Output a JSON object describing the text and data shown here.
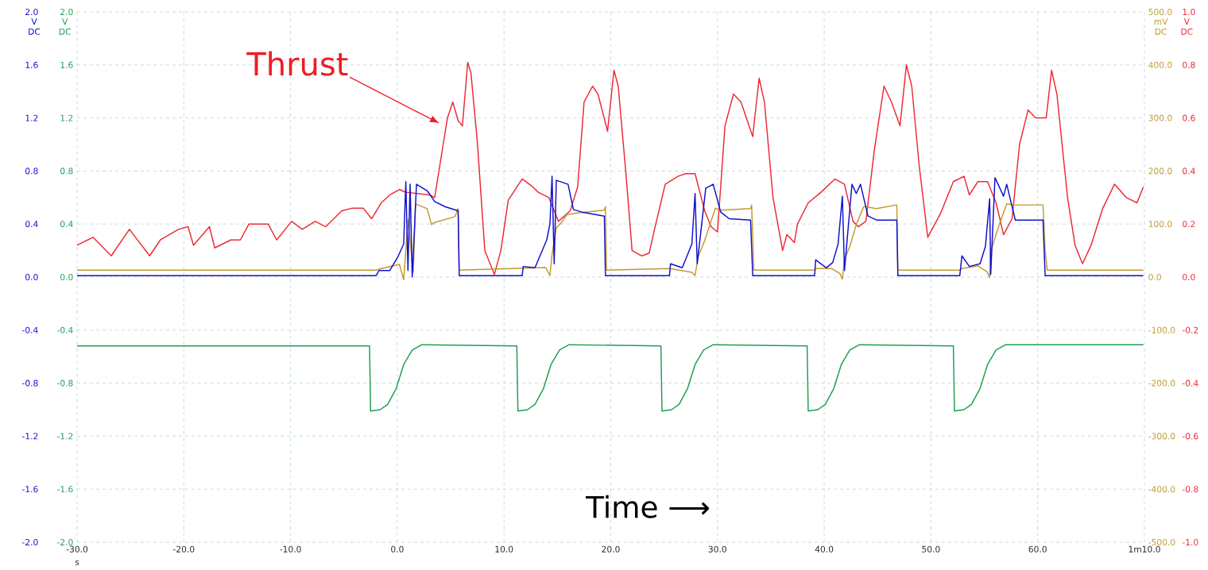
{
  "chart_data": {
    "type": "line",
    "xlabel": "s",
    "ylabel": "V DC",
    "y2label": "V DC",
    "y3label": "mV DC",
    "xlim": [
      -30,
      70
    ],
    "xticks": [
      {
        "value": -30,
        "label": "-30.0"
      },
      {
        "value": -20,
        "label": "-20.0"
      },
      {
        "value": -10,
        "label": "-10.0"
      },
      {
        "value": 0,
        "label": "0.0"
      },
      {
        "value": 10,
        "label": "10.0"
      },
      {
        "value": 20,
        "label": "20.0"
      },
      {
        "value": 30,
        "label": "30.0"
      },
      {
        "value": 40,
        "label": "40.0"
      },
      {
        "value": 50,
        "label": "50.0"
      },
      {
        "value": 60,
        "label": "60.0"
      },
      {
        "value": 70,
        "label": "1m10.0"
      }
    ],
    "ylim": [
      -2,
      2
    ],
    "yticks": [
      {
        "value": -2,
        "label": "-2.0"
      },
      {
        "value": -1.6,
        "label": "-1.6"
      },
      {
        "value": -1.2,
        "label": "-1.2"
      },
      {
        "value": -0.8,
        "label": "-0.8"
      },
      {
        "value": -0.4,
        "label": "-0.4"
      },
      {
        "value": 0,
        "label": "0.0"
      },
      {
        "value": 0.4,
        "label": "0.4"
      },
      {
        "value": 0.8,
        "label": "0.8"
      },
      {
        "value": 1.2,
        "label": "1.2"
      },
      {
        "value": 1.6,
        "label": "1.6"
      },
      {
        "value": 2,
        "label": "2.0"
      }
    ],
    "y3lim": [
      -500,
      500
    ],
    "y3ticks": [
      {
        "value": -500,
        "label": "-500.0"
      },
      {
        "value": -400,
        "label": "-400.0"
      },
      {
        "value": -300,
        "label": "-300.0"
      },
      {
        "value": -200,
        "label": "-200.0"
      },
      {
        "value": -100,
        "label": "-100.0"
      },
      {
        "value": 0,
        "label": "0.0"
      },
      {
        "value": 100,
        "label": "100.0"
      },
      {
        "value": 200,
        "label": "200.0"
      },
      {
        "value": 300,
        "label": "300.0"
      },
      {
        "value": 400,
        "label": "400.0"
      },
      {
        "value": 500,
        "label": "500.0"
      }
    ],
    "y2lim": [
      -1,
      1
    ],
    "y2ticks": [
      {
        "value": -1,
        "label": "-1.0"
      },
      {
        "value": -0.8,
        "label": "-0.8"
      },
      {
        "value": -0.6,
        "label": "-0.6"
      },
      {
        "value": -0.4,
        "label": "-0.4"
      },
      {
        "value": -0.2,
        "label": "-0.2"
      },
      {
        "value": 0,
        "label": "0.0"
      },
      {
        "value": 0.2,
        "label": "0.2"
      },
      {
        "value": 0.4,
        "label": "0.4"
      },
      {
        "value": 0.6,
        "label": "0.6"
      },
      {
        "value": 0.8,
        "label": "0.8"
      },
      {
        "value": 1,
        "label": "1.0"
      }
    ],
    "grid": true,
    "annotations": [
      "Thrust",
      "Time ⟶"
    ],
    "series": [
      {
        "color": "#1e9e50",
        "axis": "y",
        "x": [
          -30,
          -2.6,
          -2.5,
          -1.6,
          -0.9,
          -0.1,
          0.6,
          1.4,
          2.3,
          11.2,
          11.3,
          12.2,
          12.9,
          13.7,
          14.4,
          15.2,
          16.1,
          24.7,
          24.8,
          25.7,
          26.4,
          27.2,
          27.9,
          28.7,
          29.6,
          38.4,
          38.5,
          39.4,
          40.1,
          40.9,
          41.6,
          42.4,
          43.3,
          52.1,
          52.2,
          53.1,
          53.8,
          54.6,
          55.3,
          56.1,
          57.0,
          69.9
        ],
        "values": [
          -0.52,
          -0.52,
          -1.01,
          -1.0,
          -0.96,
          -0.84,
          -0.66,
          -0.55,
          -0.51,
          -0.52,
          -1.01,
          -1.0,
          -0.96,
          -0.84,
          -0.66,
          -0.55,
          -0.51,
          -0.52,
          -1.01,
          -1.0,
          -0.96,
          -0.84,
          -0.66,
          -0.55,
          -0.51,
          -0.52,
          -1.01,
          -1.0,
          -0.96,
          -0.84,
          -0.66,
          -0.55,
          -0.51,
          -0.52,
          -1.01,
          -1.0,
          -0.96,
          -0.84,
          -0.66,
          -0.55,
          -0.51,
          -0.51
        ]
      },
      {
        "color": "#ee2a35",
        "axis": "y2",
        "x": [
          -30.0,
          -28.5,
          -26.8,
          -25.1,
          -23.2,
          -22.2,
          -20.5,
          -19.6,
          -19.1,
          -17.6,
          -17.1,
          -15.6,
          -14.7,
          -13.9,
          -12.1,
          -11.3,
          -9.9,
          -8.9,
          -7.7,
          -6.7,
          -5.2,
          -4.2,
          -3.2,
          -2.4,
          -1.5,
          -0.7,
          0.2,
          0.8,
          3.0,
          3.5,
          4.3,
          4.7,
          5.2,
          5.7,
          6.1,
          6.6,
          6.9,
          7.5,
          8.2,
          9.1,
          9.7,
          10.4,
          11.7,
          12.7,
          13.2,
          14.2,
          15.1,
          16.2,
          16.9,
          17.5,
          18.3,
          18.8,
          19.7,
          20.3,
          20.7,
          21.4,
          22.0,
          22.9,
          23.6,
          24.1,
          25.1,
          26.3,
          27.0,
          27.9,
          28.8,
          29.4,
          30.0,
          30.7,
          31.5,
          32.2,
          33.3,
          33.9,
          34.4,
          35.2,
          36.1,
          36.5,
          37.2,
          37.5,
          38.5,
          39.7,
          41.0,
          41.9,
          42.7,
          43.2,
          43.9,
          44.7,
          45.6,
          46.3,
          47.1,
          47.7,
          48.2,
          48.9,
          49.7,
          50.9,
          52.1,
          53.1,
          53.6,
          54.4,
          55.3,
          56.1,
          56.8,
          57.6,
          58.3,
          59.1,
          59.8,
          60.8,
          61.3,
          61.8,
          62.8,
          63.5,
          64.2,
          65.0,
          66.1,
          67.2,
          68.3,
          69.3,
          69.9
        ],
        "values": [
          0.12,
          0.15,
          0.08,
          0.18,
          0.08,
          0.14,
          0.18,
          0.19,
          0.12,
          0.19,
          0.11,
          0.14,
          0.14,
          0.2,
          0.2,
          0.14,
          0.21,
          0.18,
          0.21,
          0.19,
          0.25,
          0.26,
          0.26,
          0.22,
          0.28,
          0.31,
          0.33,
          0.32,
          0.31,
          0.3,
          0.5,
          0.6,
          0.66,
          0.59,
          0.57,
          0.81,
          0.77,
          0.51,
          0.1,
          0.01,
          0.1,
          0.29,
          0.37,
          0.34,
          0.32,
          0.3,
          0.21,
          0.25,
          0.34,
          0.66,
          0.72,
          0.69,
          0.55,
          0.78,
          0.72,
          0.4,
          0.1,
          0.08,
          0.09,
          0.18,
          0.35,
          0.38,
          0.39,
          0.39,
          0.25,
          0.19,
          0.17,
          0.57,
          0.69,
          0.66,
          0.53,
          0.75,
          0.66,
          0.3,
          0.1,
          0.16,
          0.13,
          0.2,
          0.28,
          0.32,
          0.37,
          0.35,
          0.21,
          0.19,
          0.21,
          0.48,
          0.72,
          0.66,
          0.57,
          0.8,
          0.72,
          0.42,
          0.15,
          0.24,
          0.36,
          0.38,
          0.31,
          0.36,
          0.36,
          0.28,
          0.16,
          0.22,
          0.5,
          0.63,
          0.6,
          0.6,
          0.78,
          0.69,
          0.3,
          0.12,
          0.05,
          0.12,
          0.26,
          0.35,
          0.3,
          0.28,
          0.34
        ]
      },
      {
        "color": "#c09a30",
        "axis": "y3",
        "x": [
          -30,
          -2.0,
          -1.5,
          0.2,
          0.6,
          1.0,
          1.5,
          1.7,
          2.8,
          3.2,
          3.5,
          5.4,
          5.7,
          5.8,
          13.9,
          14.3,
          14.5,
          14.9,
          15.4,
          15.9,
          16.9,
          19.4,
          19.5,
          19.6,
          25.5,
          27.6,
          27.9,
          28.2,
          28.8,
          29.3,
          29.8,
          30.3,
          33.1,
          33.2,
          33.4,
          39.1,
          39.2,
          40.7,
          41.5,
          41.7,
          41.9,
          42.4,
          43.0,
          43.7,
          44.9,
          46.8,
          46.9,
          52.7,
          52.9,
          54.4,
          55.3,
          55.5,
          55.6,
          56.4,
          57.1,
          57.9,
          60.5,
          60.7,
          60.9,
          69.9
        ],
        "values": [
          13,
          13,
          16,
          24,
          -5,
          108,
          9,
          138,
          129,
          99,
          103,
          114,
          129,
          13,
          18,
          3,
          43,
          93,
          103,
          118,
          121,
          126,
          133,
          13,
          16,
          9,
          3,
          39,
          69,
          99,
          130,
          126,
          129,
          136,
          13,
          13,
          16,
          16,
          6,
          -4,
          33,
          58,
          99,
          133,
          129,
          136,
          13,
          13,
          16,
          21,
          9,
          -1,
          48,
          99,
          138,
          136,
          136,
          48,
          13,
          13
        ]
      },
      {
        "color": "#1010d0",
        "axis": "y",
        "x": [
          -30,
          -2.0,
          -1.7,
          -0.7,
          0.1,
          0.6,
          0.8,
          1.0,
          1.2,
          1.4,
          1.8,
          2.8,
          3.0,
          3.5,
          4.5,
          5.7,
          5.8,
          11.7,
          11.8,
          12.9,
          14.0,
          14.3,
          14.5,
          14.7,
          14.9,
          16.0,
          16.5,
          17.3,
          19.4,
          19.5,
          25.5,
          25.6,
          26.7,
          27.6,
          27.9,
          28.1,
          28.9,
          29.6,
          30.3,
          31.1,
          33.1,
          33.3,
          39.1,
          39.2,
          40.2,
          40.8,
          41.3,
          41.7,
          41.9,
          42.6,
          43.0,
          43.4,
          44.1,
          44.9,
          46.8,
          46.9,
          52.7,
          52.9,
          53.6,
          54.6,
          55.1,
          55.5,
          55.6,
          56.0,
          56.8,
          57.1,
          57.9,
          60.5,
          60.7,
          69.9
        ],
        "values": [
          0.01,
          0.01,
          0.05,
          0.05,
          0.16,
          0.25,
          0.72,
          0.05,
          0.7,
          0.0,
          0.7,
          0.65,
          0.63,
          0.57,
          0.53,
          0.5,
          0.01,
          0.01,
          0.08,
          0.07,
          0.28,
          0.4,
          0.76,
          0.1,
          0.73,
          0.7,
          0.51,
          0.49,
          0.46,
          0.01,
          0.01,
          0.1,
          0.07,
          0.25,
          0.63,
          0.1,
          0.67,
          0.7,
          0.49,
          0.44,
          0.43,
          0.01,
          0.01,
          0.13,
          0.07,
          0.11,
          0.25,
          0.61,
          0.05,
          0.7,
          0.63,
          0.7,
          0.46,
          0.43,
          0.43,
          0.01,
          0.01,
          0.16,
          0.08,
          0.1,
          0.23,
          0.59,
          0.02,
          0.75,
          0.61,
          0.7,
          0.43,
          0.43,
          0.01,
          0.01
        ]
      }
    ]
  }
}
